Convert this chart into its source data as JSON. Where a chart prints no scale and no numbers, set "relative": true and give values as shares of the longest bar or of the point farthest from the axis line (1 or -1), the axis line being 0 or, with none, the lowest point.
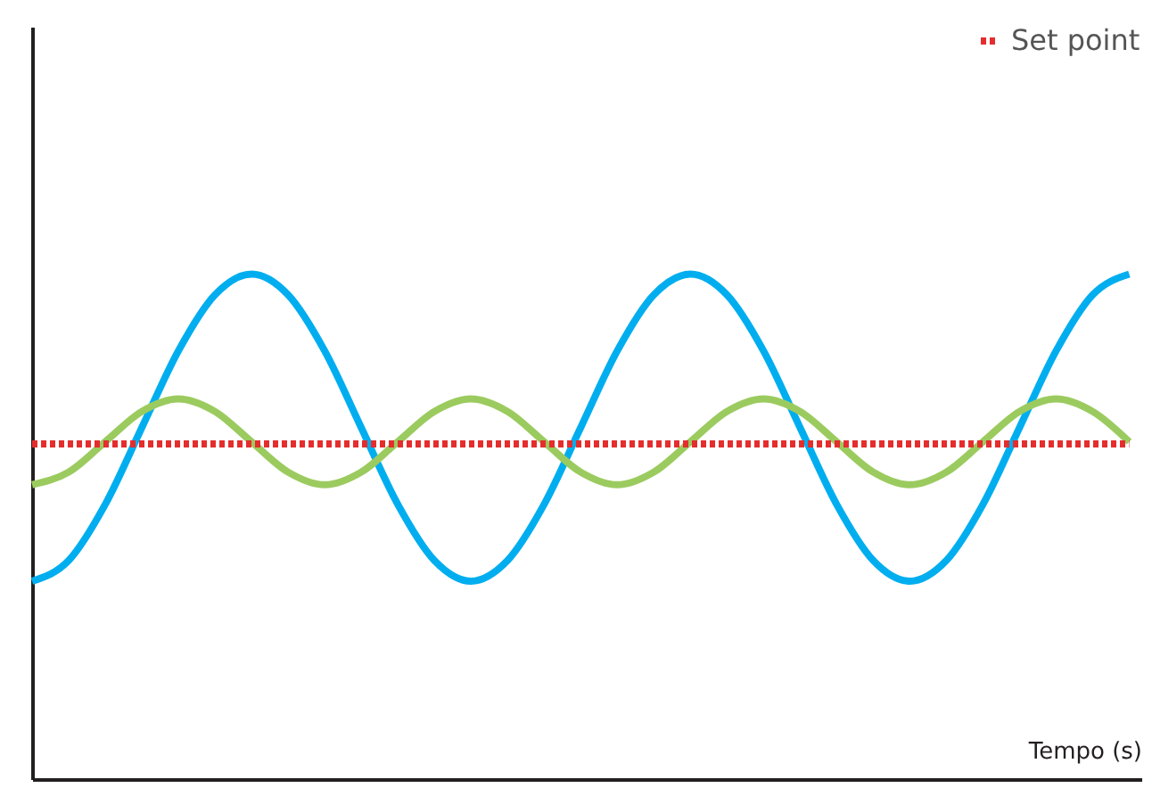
{
  "chart_data": {
    "type": "line",
    "relative": true,
    "xlabel": "Tempo (s)",
    "legend": "top right",
    "tick_labels": false,
    "categories": [
      null,
      null,
      null,
      null,
      null,
      null,
      null,
      null,
      null,
      null,
      null,
      null,
      null,
      null,
      null,
      null,
      null,
      null,
      null,
      null,
      null,
      null,
      null,
      null,
      null,
      null,
      null,
      null,
      null,
      null,
      null
    ],
    "series": [
      {
        "color": "#00aeef",
        "values": [
          0.392,
          0.433,
          0.544,
          0.696,
          0.848,
          0.959,
          1,
          0.959,
          0.848,
          0.696,
          0.544,
          0.433,
          0.392,
          0.433,
          0.544,
          0.696,
          0.848,
          0.959,
          1,
          0.959,
          0.848,
          0.696,
          0.544,
          0.433,
          0.392,
          0.433,
          0.544,
          0.696,
          0.848,
          0.959,
          1
        ]
      },
      {
        "color": "#9bcb5f",
        "values": [
          0.583,
          0.608,
          0.668,
          0.728,
          0.753,
          0.728,
          0.668,
          0.608,
          0.583,
          0.608,
          0.668,
          0.728,
          0.753,
          0.728,
          0.668,
          0.608,
          0.583,
          0.608,
          0.668,
          0.728,
          0.753,
          0.728,
          0.668,
          0.608,
          0.583,
          0.608,
          0.668,
          0.728,
          0.753,
          0.728,
          0.668
        ]
      },
      {
        "name": "Set point",
        "color": "#e52d2d",
        "line_style": "dotted",
        "values": [
          0.664,
          0.664,
          0.664,
          0.664,
          0.664,
          0.664,
          0.664,
          0.664,
          0.664,
          0.664,
          0.664,
          0.664,
          0.664,
          0.664,
          0.664,
          0.664,
          0.664,
          0.664,
          0.664,
          0.664,
          0.664,
          0.664,
          0.664,
          0.664,
          0.664,
          0.664,
          0.664,
          0.664,
          0.664,
          0.664,
          0.664
        ]
      }
    ]
  }
}
